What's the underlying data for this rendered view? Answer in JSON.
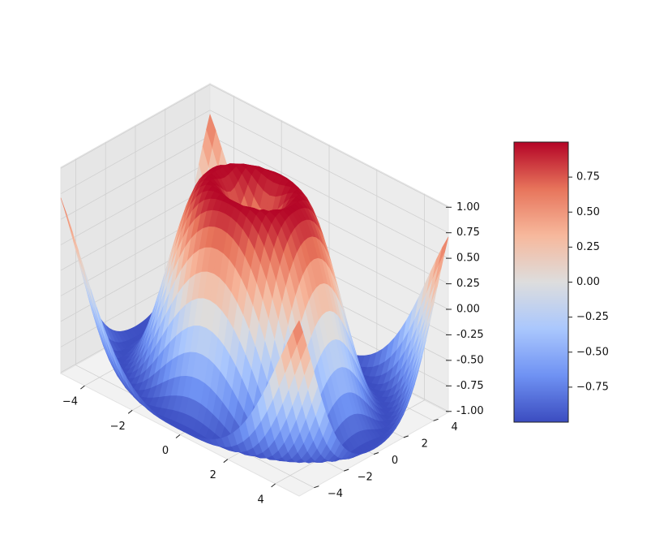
{
  "chart_data": {
    "type": "surface",
    "function": "z = sin(sqrt(x^2 + y^2))",
    "x": [
      -5,
      -4,
      -3,
      -2,
      -1,
      0,
      1,
      2,
      3,
      4,
      5
    ],
    "y": [
      -5,
      -4,
      -3,
      -2,
      -1,
      0,
      1,
      2,
      3,
      4,
      5
    ],
    "xlim": [
      -5,
      5
    ],
    "ylim": [
      -5,
      5
    ],
    "zlim": [
      -1.01,
      1.01
    ],
    "colormap": "coolwarm",
    "colormap_stops": [
      "#3b4cc0",
      "#6f92f3",
      "#aac7fd",
      "#dddddd",
      "#f7b89c",
      "#e7745b",
      "#b40426"
    ],
    "x_ticks": [
      "−4",
      "−2",
      "0",
      "2",
      "4"
    ],
    "y_ticks": [
      "−4",
      "−2",
      "0",
      "2",
      "4"
    ],
    "z_ticks": [
      "-1.00",
      "-0.75",
      "-0.50",
      "-0.25",
      "0.00",
      "0.25",
      "0.50",
      "0.75",
      "1.00"
    ],
    "colorbar": {
      "range": [
        -1.0,
        1.0
      ],
      "ticks": [
        "−0.75",
        "−0.50",
        "−0.25",
        "0.00",
        "0.25",
        "0.50",
        "0.75"
      ],
      "tick_values": [
        -0.75,
        -0.5,
        -0.25,
        0.0,
        0.25,
        0.5,
        0.75
      ]
    },
    "grid": true
  }
}
